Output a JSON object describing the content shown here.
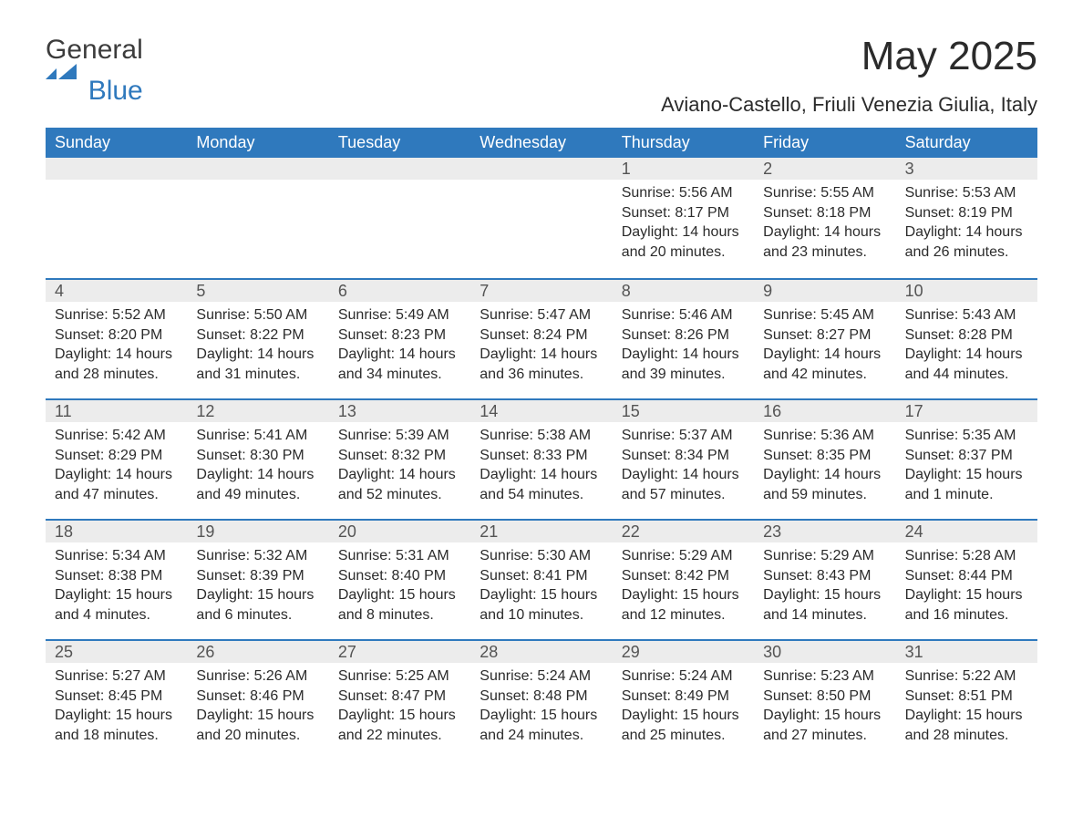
{
  "brand": {
    "text_top": "General",
    "text_bottom": "Blue",
    "text_color": "#3c3c3c",
    "accent_color": "#2f79bd"
  },
  "header": {
    "month_title": "May 2025",
    "location": "Aviano-Castello, Friuli Venezia Giulia, Italy"
  },
  "colors": {
    "header_bg": "#2f79bd",
    "header_text": "#ffffff",
    "daynum_bg": "#ececec",
    "daynum_text": "#545454",
    "rule": "#2f79bd",
    "body_text": "#2b2b2b",
    "page_bg": "#ffffff"
  },
  "days_of_week": [
    "Sunday",
    "Monday",
    "Tuesday",
    "Wednesday",
    "Thursday",
    "Friday",
    "Saturday"
  ],
  "grid": {
    "columns": 7,
    "rows": 5,
    "leading_blanks": 4
  },
  "days": [
    {
      "n": "1",
      "sunrise": "Sunrise: 5:56 AM",
      "sunset": "Sunset: 8:17 PM",
      "daylight": "Daylight: 14 hours and 20 minutes."
    },
    {
      "n": "2",
      "sunrise": "Sunrise: 5:55 AM",
      "sunset": "Sunset: 8:18 PM",
      "daylight": "Daylight: 14 hours and 23 minutes."
    },
    {
      "n": "3",
      "sunrise": "Sunrise: 5:53 AM",
      "sunset": "Sunset: 8:19 PM",
      "daylight": "Daylight: 14 hours and 26 minutes."
    },
    {
      "n": "4",
      "sunrise": "Sunrise: 5:52 AM",
      "sunset": "Sunset: 8:20 PM",
      "daylight": "Daylight: 14 hours and 28 minutes."
    },
    {
      "n": "5",
      "sunrise": "Sunrise: 5:50 AM",
      "sunset": "Sunset: 8:22 PM",
      "daylight": "Daylight: 14 hours and 31 minutes."
    },
    {
      "n": "6",
      "sunrise": "Sunrise: 5:49 AM",
      "sunset": "Sunset: 8:23 PM",
      "daylight": "Daylight: 14 hours and 34 minutes."
    },
    {
      "n": "7",
      "sunrise": "Sunrise: 5:47 AM",
      "sunset": "Sunset: 8:24 PM",
      "daylight": "Daylight: 14 hours and 36 minutes."
    },
    {
      "n": "8",
      "sunrise": "Sunrise: 5:46 AM",
      "sunset": "Sunset: 8:26 PM",
      "daylight": "Daylight: 14 hours and 39 minutes."
    },
    {
      "n": "9",
      "sunrise": "Sunrise: 5:45 AM",
      "sunset": "Sunset: 8:27 PM",
      "daylight": "Daylight: 14 hours and 42 minutes."
    },
    {
      "n": "10",
      "sunrise": "Sunrise: 5:43 AM",
      "sunset": "Sunset: 8:28 PM",
      "daylight": "Daylight: 14 hours and 44 minutes."
    },
    {
      "n": "11",
      "sunrise": "Sunrise: 5:42 AM",
      "sunset": "Sunset: 8:29 PM",
      "daylight": "Daylight: 14 hours and 47 minutes."
    },
    {
      "n": "12",
      "sunrise": "Sunrise: 5:41 AM",
      "sunset": "Sunset: 8:30 PM",
      "daylight": "Daylight: 14 hours and 49 minutes."
    },
    {
      "n": "13",
      "sunrise": "Sunrise: 5:39 AM",
      "sunset": "Sunset: 8:32 PM",
      "daylight": "Daylight: 14 hours and 52 minutes."
    },
    {
      "n": "14",
      "sunrise": "Sunrise: 5:38 AM",
      "sunset": "Sunset: 8:33 PM",
      "daylight": "Daylight: 14 hours and 54 minutes."
    },
    {
      "n": "15",
      "sunrise": "Sunrise: 5:37 AM",
      "sunset": "Sunset: 8:34 PM",
      "daylight": "Daylight: 14 hours and 57 minutes."
    },
    {
      "n": "16",
      "sunrise": "Sunrise: 5:36 AM",
      "sunset": "Sunset: 8:35 PM",
      "daylight": "Daylight: 14 hours and 59 minutes."
    },
    {
      "n": "17",
      "sunrise": "Sunrise: 5:35 AM",
      "sunset": "Sunset: 8:37 PM",
      "daylight": "Daylight: 15 hours and 1 minute."
    },
    {
      "n": "18",
      "sunrise": "Sunrise: 5:34 AM",
      "sunset": "Sunset: 8:38 PM",
      "daylight": "Daylight: 15 hours and 4 minutes."
    },
    {
      "n": "19",
      "sunrise": "Sunrise: 5:32 AM",
      "sunset": "Sunset: 8:39 PM",
      "daylight": "Daylight: 15 hours and 6 minutes."
    },
    {
      "n": "20",
      "sunrise": "Sunrise: 5:31 AM",
      "sunset": "Sunset: 8:40 PM",
      "daylight": "Daylight: 15 hours and 8 minutes."
    },
    {
      "n": "21",
      "sunrise": "Sunrise: 5:30 AM",
      "sunset": "Sunset: 8:41 PM",
      "daylight": "Daylight: 15 hours and 10 minutes."
    },
    {
      "n": "22",
      "sunrise": "Sunrise: 5:29 AM",
      "sunset": "Sunset: 8:42 PM",
      "daylight": "Daylight: 15 hours and 12 minutes."
    },
    {
      "n": "23",
      "sunrise": "Sunrise: 5:29 AM",
      "sunset": "Sunset: 8:43 PM",
      "daylight": "Daylight: 15 hours and 14 minutes."
    },
    {
      "n": "24",
      "sunrise": "Sunrise: 5:28 AM",
      "sunset": "Sunset: 8:44 PM",
      "daylight": "Daylight: 15 hours and 16 minutes."
    },
    {
      "n": "25",
      "sunrise": "Sunrise: 5:27 AM",
      "sunset": "Sunset: 8:45 PM",
      "daylight": "Daylight: 15 hours and 18 minutes."
    },
    {
      "n": "26",
      "sunrise": "Sunrise: 5:26 AM",
      "sunset": "Sunset: 8:46 PM",
      "daylight": "Daylight: 15 hours and 20 minutes."
    },
    {
      "n": "27",
      "sunrise": "Sunrise: 5:25 AM",
      "sunset": "Sunset: 8:47 PM",
      "daylight": "Daylight: 15 hours and 22 minutes."
    },
    {
      "n": "28",
      "sunrise": "Sunrise: 5:24 AM",
      "sunset": "Sunset: 8:48 PM",
      "daylight": "Daylight: 15 hours and 24 minutes."
    },
    {
      "n": "29",
      "sunrise": "Sunrise: 5:24 AM",
      "sunset": "Sunset: 8:49 PM",
      "daylight": "Daylight: 15 hours and 25 minutes."
    },
    {
      "n": "30",
      "sunrise": "Sunrise: 5:23 AM",
      "sunset": "Sunset: 8:50 PM",
      "daylight": "Daylight: 15 hours and 27 minutes."
    },
    {
      "n": "31",
      "sunrise": "Sunrise: 5:22 AM",
      "sunset": "Sunset: 8:51 PM",
      "daylight": "Daylight: 15 hours and 28 minutes."
    }
  ]
}
